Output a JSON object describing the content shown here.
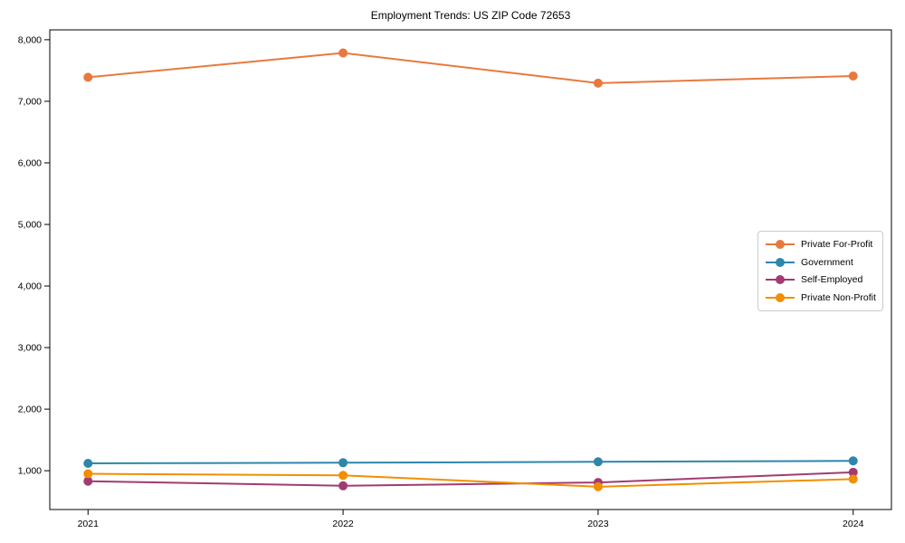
{
  "chart_data": {
    "type": "line",
    "title": "Employment Trends: US ZIP Code 72653",
    "xlabel": "",
    "ylabel": "",
    "x": [
      2021,
      2022,
      2023,
      2024
    ],
    "categories": [
      "2021",
      "2022",
      "2023",
      "2024"
    ],
    "series": [
      {
        "name": "Private For-Profit",
        "color": "#E8793D",
        "values": [
          7390,
          7785,
          7295,
          7410
        ]
      },
      {
        "name": "Government",
        "color": "#2E86AB",
        "values": [
          1120,
          1130,
          1145,
          1160
        ]
      },
      {
        "name": "Self-Employed",
        "color": "#A23B72",
        "values": [
          830,
          755,
          810,
          975
        ]
      },
      {
        "name": "Private Non-Profit",
        "color": "#F18F01",
        "values": [
          950,
          925,
          740,
          865
        ]
      }
    ],
    "ylim": [
      370,
      8160
    ],
    "yticks": [
      1000,
      2000,
      3000,
      4000,
      5000,
      6000,
      7000,
      8000
    ],
    "ytick_labels": [
      "1,000",
      "2,000",
      "3,000",
      "4,000",
      "5,000",
      "6,000",
      "7,000",
      "8,000"
    ],
    "grid": false,
    "legend_position": "center right",
    "marker": "o",
    "axis_color": "#000000",
    "background_color": "#ffffff"
  }
}
